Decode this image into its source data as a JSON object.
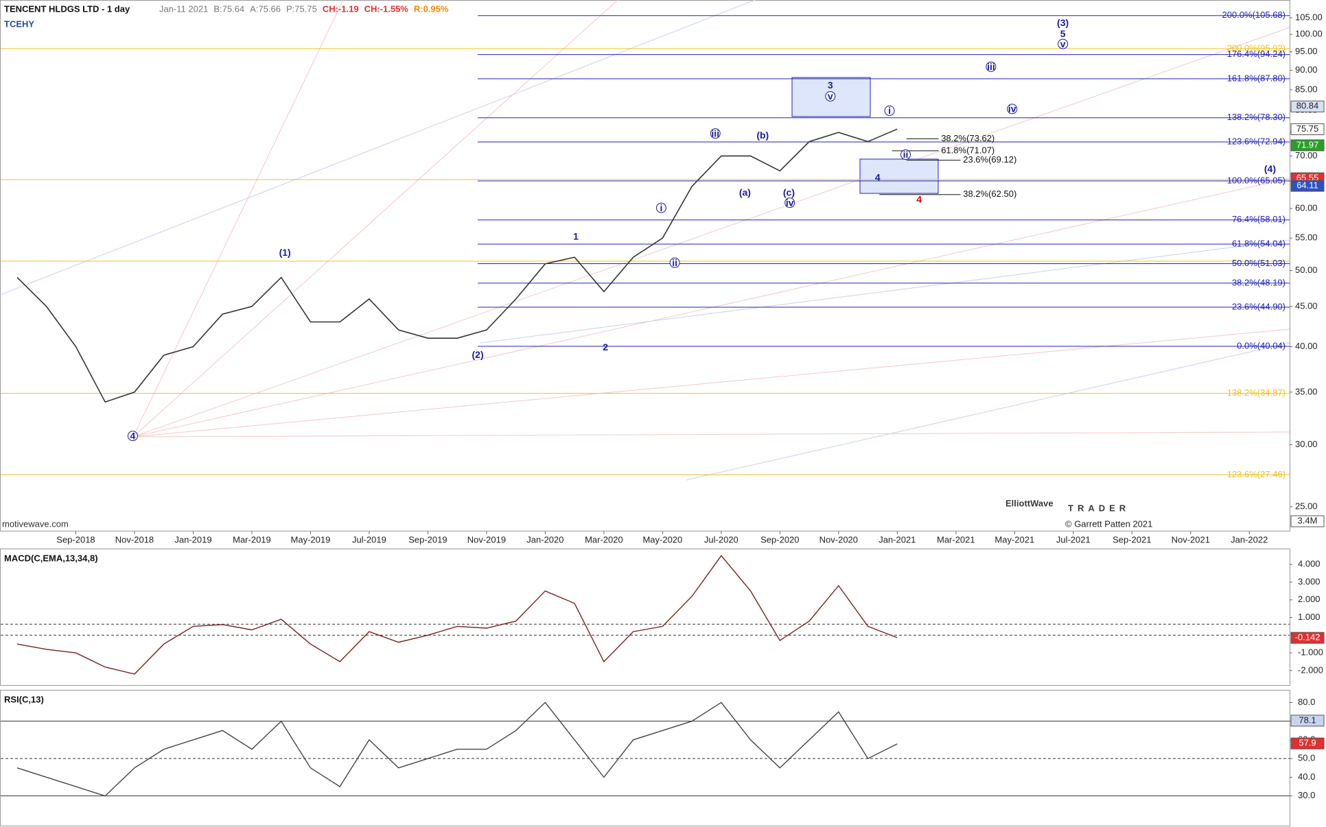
{
  "header": {
    "symbol_title": "TENCENT HLDGS LTD - 1 day",
    "stats": [
      "Jan-11 2021",
      "B:75.64",
      "A:75.66",
      "P:75.75",
      "CH:-1.19",
      "CH:-1.55%",
      "R:0.95%"
    ],
    "ticker": "TCEHY"
  },
  "watermark": "motivewave.com",
  "logo": {
    "line1": "ElliottWave",
    "line2": "TRADER",
    "copyright": "© Garrett Patten 2021"
  },
  "chart_data": [
    {
      "type": "line",
      "log_scale": true,
      "color": "#333333",
      "x": [
        "Jul-2018",
        "Aug-2018",
        "Sep-2018",
        "Oct-2018",
        "Nov-2018",
        "Dec-2018",
        "Jan-2019",
        "Feb-2019",
        "Mar-2019",
        "Apr-2019",
        "May-2019",
        "Jun-2019",
        "Jul-2019",
        "Aug-2019",
        "Sep-2019",
        "Oct-2019",
        "Nov-2019",
        "Dec-2019",
        "Jan-2020",
        "Feb-2020",
        "Mar-2020",
        "Apr-2020",
        "May-2020",
        "Jun-2020",
        "Jul-2020",
        "Aug-2020",
        "Sep-2020",
        "Oct-2020",
        "Nov-2020",
        "Dec-2020",
        "Jan-2021"
      ],
      "values": [
        49,
        45,
        40,
        34,
        35,
        39,
        40,
        44,
        45,
        49,
        43,
        43,
        46,
        42,
        41,
        41,
        42,
        46,
        51,
        52,
        47,
        52,
        55,
        64,
        70,
        70,
        67,
        73,
        75,
        73,
        75.75
      ],
      "xlim": [
        "Jul-2018",
        "Feb-2022"
      ],
      "xticks": [
        "Sep-2018",
        "Nov-2018",
        "Jan-2019",
        "Mar-2019",
        "May-2019",
        "Jul-2019",
        "Sep-2019",
        "Nov-2019",
        "Jan-2020",
        "Mar-2020",
        "May-2020",
        "Jul-2020",
        "Sep-2020",
        "Nov-2020",
        "Jan-2021",
        "Mar-2021",
        "May-2021",
        "Jul-2021",
        "Sep-2021",
        "Nov-2021",
        "Jan-2022"
      ],
      "ylim": [
        23.3,
        110.4
      ],
      "yticks": [
        {
          "value": 25,
          "label": "25.00"
        },
        {
          "value": 30,
          "label": "30.00"
        },
        {
          "value": 35,
          "label": "35.00"
        },
        {
          "value": 40,
          "label": "40.00"
        },
        {
          "value": 45,
          "label": "45.00"
        },
        {
          "value": 50,
          "label": "50.00"
        },
        {
          "value": 55,
          "label": "55.00"
        },
        {
          "value": 60,
          "label": "60.00"
        },
        {
          "value": 65,
          "label": "65.00"
        },
        {
          "value": 70,
          "label": "70.00"
        },
        {
          "value": 75,
          "label": "75.00"
        },
        {
          "value": 80,
          "label": "80.00"
        },
        {
          "value": 85,
          "label": "85.00"
        },
        {
          "value": 90,
          "label": "90.00"
        },
        {
          "value": 95,
          "label": "95.00"
        },
        {
          "value": 100,
          "label": "100.00"
        },
        {
          "value": 105,
          "label": "105.00"
        }
      ],
      "fib_levels": [
        {
          "value": 105.68,
          "label": "200.0%(105.68)"
        },
        {
          "value": 94.24,
          "label": "176.4%(94.24)"
        },
        {
          "value": 87.8,
          "label": "161.8%(87.80)"
        },
        {
          "value": 78.3,
          "label": "138.2%(78.30)"
        },
        {
          "value": 72.94,
          "label": "123.6%(72.94)"
        },
        {
          "value": 65.05,
          "label": "100.0%(65.05)"
        },
        {
          "value": 58.01,
          "label": "76.4%(58.01)"
        },
        {
          "value": 54.04,
          "label": "61.8%(54.04)"
        },
        {
          "value": 51.03,
          "label": "50.0%(51.03)"
        },
        {
          "value": 48.19,
          "label": "38.2%(48.19)"
        },
        {
          "value": 44.9,
          "label": "23.6%(44.90)"
        },
        {
          "value": 40.04,
          "label": "0.0%(40.04)"
        }
      ],
      "fib_color": "#2222bb",
      "yellow_levels": [
        {
          "value": 95.92,
          "label": "200.0%(95.92)"
        },
        {
          "value": 34.87,
          "label": "138.2%(34.87)"
        },
        {
          "value": 27.46,
          "label": "123.6%(27.46)"
        }
      ],
      "yellow_lines": [
        65.3,
        51.4
      ],
      "yellow_color": "#f0c020",
      "near_levels": [
        {
          "value": 73.62,
          "label": "38.2%(73.62)"
        },
        {
          "value": 71.07,
          "label": "61.8%(71.07)"
        },
        {
          "value": 69.12,
          "label": "23.6%(69.12)"
        },
        {
          "value": 62.5,
          "label": "38.2%(62.50)"
        }
      ],
      "wave_labels": [
        {
          "text": "(3)",
          "circled": false
        },
        {
          "text": "5",
          "circled": false
        },
        {
          "text": "v",
          "circled": true
        },
        {
          "text": "3",
          "circled": false
        },
        {
          "text": "v",
          "circled": true
        },
        {
          "text": "i",
          "circled": true
        },
        {
          "text": "iii",
          "circled": true
        },
        {
          "text": "iv",
          "circled": true
        },
        {
          "text": "ii",
          "circled": true
        },
        {
          "text": "(4)",
          "circled": false
        },
        {
          "text": "4",
          "circled": false
        },
        {
          "text": "4",
          "circled": false,
          "color": "#e00000"
        },
        {
          "text": "iii",
          "circled": true
        },
        {
          "text": "(b)",
          "circled": false
        },
        {
          "text": "(a)",
          "circled": false
        },
        {
          "text": "(c)",
          "circled": false
        },
        {
          "text": "iv",
          "circled": true
        },
        {
          "text": "i",
          "circled": true
        },
        {
          "text": "ii",
          "circled": true
        },
        {
          "text": "1",
          "circled": false
        },
        {
          "text": "2",
          "circled": false
        },
        {
          "text": "(2)",
          "circled": false
        },
        {
          "text": "(1)",
          "circled": false
        },
        {
          "text": "4",
          "circled": true
        }
      ],
      "wave_color": "#1a1aa0",
      "price_tags": [
        "80.84",
        "75.75",
        "71.97",
        "65.55",
        "64.11",
        "3.4M"
      ]
    },
    {
      "type": "line",
      "title": "MACD(C,EMA,13,34,8)",
      "color": "#7a2020",
      "values": [
        -0.5,
        -0.8,
        -1.0,
        -1.8,
        -2.2,
        -0.5,
        0.5,
        0.6,
        0.3,
        0.9,
        -0.5,
        -1.5,
        0.2,
        -0.4,
        0.0,
        0.5,
        0.4,
        0.8,
        2.5,
        1.8,
        -1.5,
        0.2,
        0.5,
        2.2,
        4.5,
        2.5,
        -0.3,
        0.8,
        2.8,
        0.5,
        -0.142
      ],
      "ylim": [
        -2.86,
        4.86
      ],
      "yticks": [
        {
          "value": 4,
          "label": "4.000"
        },
        {
          "value": 3,
          "label": "3.000"
        },
        {
          "value": 2,
          "label": "2.000"
        },
        {
          "value": 1,
          "label": "1.000"
        },
        {
          "value": -1,
          "label": "-1.000"
        },
        {
          "value": -2,
          "label": "-2.000"
        }
      ],
      "reference_lines": [
        0.62,
        0
      ],
      "tags": [
        "-0.142"
      ]
    },
    {
      "type": "line",
      "title": "RSI(C,13)",
      "color": "#444444",
      "values": [
        45,
        40,
        35,
        30,
        45,
        55,
        60,
        65,
        55,
        70,
        45,
        35,
        60,
        45,
        50,
        55,
        55,
        65,
        80,
        60,
        40,
        60,
        65,
        70,
        80,
        60,
        45,
        60,
        75,
        50,
        57.9
      ],
      "ylim": [
        14.1,
        86.4
      ],
      "yticks": [
        {
          "value": 30,
          "label": "30.0"
        },
        {
          "value": 40,
          "label": "40.0"
        },
        {
          "value": 50,
          "label": "50.0"
        },
        {
          "value": 60,
          "label": "60.0"
        },
        {
          "value": 70,
          "label": "70.0"
        },
        {
          "value": 80,
          "label": "80.0"
        }
      ],
      "reference_lines": [
        70,
        50,
        30
      ],
      "tags": [
        "78.1",
        "57.9"
      ]
    }
  ]
}
